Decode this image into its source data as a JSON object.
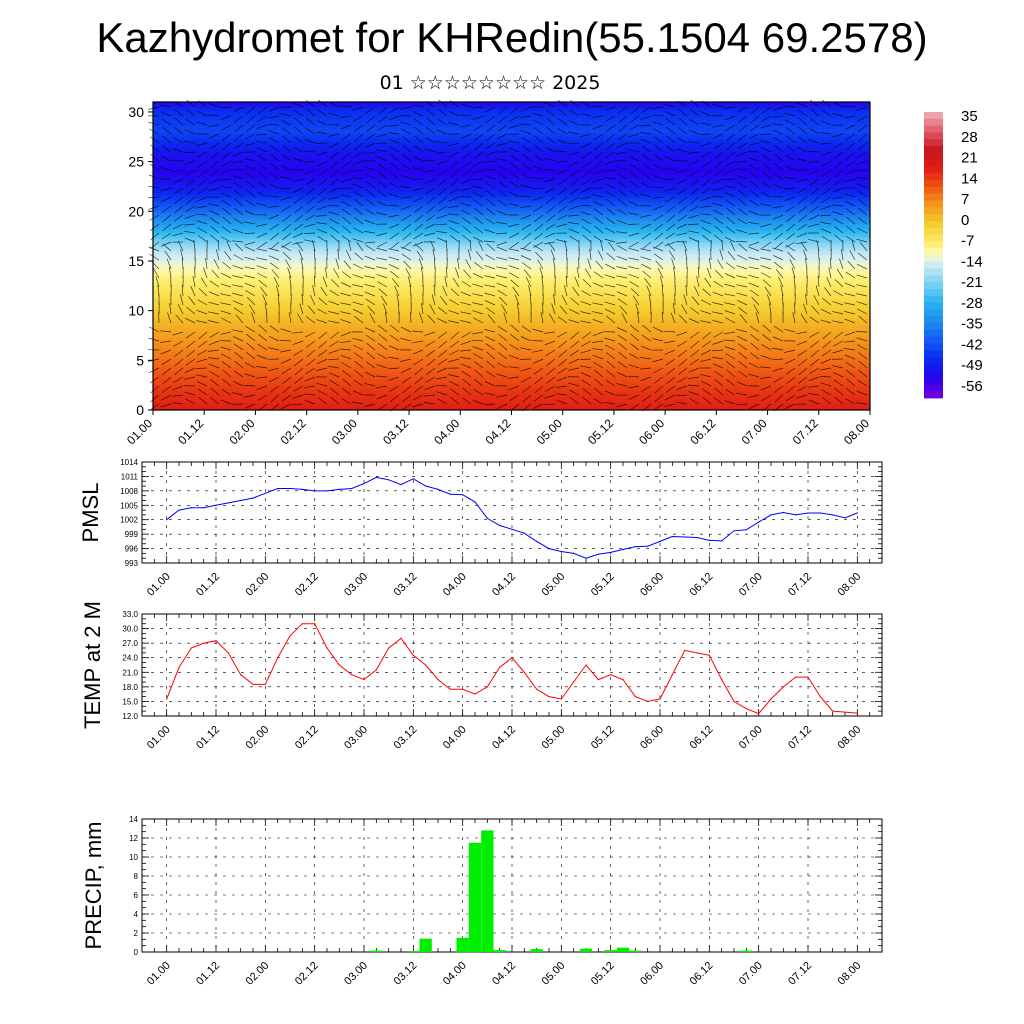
{
  "title": "Kazhydromet for KHRedin(55.1504 69.2578)",
  "subtitle": "01 ☆☆☆☆☆☆☆☆ 2025",
  "colors": {
    "pmsl_line": "#0000ff",
    "temp_line": "#ff0000",
    "precip_bar": "#00ee00"
  },
  "x_tick_labels": [
    "01.00",
    "01.12",
    "02.00",
    "02.12",
    "03.00",
    "03.12",
    "04.00",
    "04.12",
    "05.00",
    "05.12",
    "06.00",
    "06.12",
    "07.00",
    "07.12",
    "08.00"
  ],
  "chart_data": [
    {
      "type": "heatmap",
      "name": "cross-section",
      "x_ticks": [
        "01.00",
        "01.12",
        "02.00",
        "02.12",
        "03.00",
        "03.12",
        "04.00",
        "04.12",
        "05.00",
        "05.12",
        "06.00",
        "06.12",
        "07.00",
        "07.12",
        "08.00"
      ],
      "y_ticks": [
        0,
        5,
        10,
        15,
        20,
        25,
        30
      ],
      "ylim": [
        0,
        31
      ],
      "temperature_profile": {
        "levels": [
          0,
          2,
          4,
          6,
          8,
          10,
          12,
          14,
          16,
          18,
          20,
          22,
          24,
          26,
          28,
          30,
          31
        ],
        "values": [
          21,
          18,
          14,
          10,
          6,
          1,
          -4,
          -9,
          -16,
          -28,
          -40,
          -50,
          -56,
          -52,
          -45,
          -48,
          -55
        ]
      },
      "colorbar": {
        "ticks": [
          35,
          28,
          21,
          14,
          7,
          0,
          -7,
          -14,
          -21,
          -28,
          -35,
          -42,
          -49,
          -56
        ],
        "range": [
          -63,
          42
        ]
      },
      "overlay": "wind barbs"
    },
    {
      "type": "line",
      "name": "pmsl",
      "ylabel": "PMSL",
      "ylim": [
        993,
        1014
      ],
      "y_ticks": [
        993,
        996,
        999,
        1002,
        1005,
        1008,
        1011,
        1014
      ],
      "x": [
        0,
        3,
        6,
        9,
        12,
        15,
        18,
        21,
        24,
        27,
        30,
        33,
        36,
        39,
        42,
        45,
        48,
        51,
        54,
        57,
        60,
        63,
        66,
        69,
        72,
        75,
        78,
        81,
        84,
        87,
        90,
        93,
        96,
        99,
        102,
        105,
        108,
        111,
        114,
        117,
        120,
        123,
        126,
        129,
        132,
        135,
        138,
        141,
        144,
        147,
        150,
        153,
        156,
        159,
        162,
        165,
        168
      ],
      "values": [
        1002,
        1004,
        1004.5,
        1004.5,
        1005,
        1005.5,
        1006,
        1006.5,
        1007.5,
        1008.5,
        1008.5,
        1008.3,
        1008,
        1008,
        1008.3,
        1008.5,
        1009.5,
        1010.8,
        1010.3,
        1009.3,
        1010.5,
        1009,
        1008.3,
        1007.3,
        1007.2,
        1005.7,
        1002.3,
        1000.8,
        1000,
        999.2,
        997.5,
        996,
        995.4,
        995,
        994,
        994.8,
        995.2,
        995.8,
        996.4,
        996.5,
        997.5,
        998.5,
        998.4,
        998.3,
        997.7,
        997.6,
        999.7,
        999.9,
        1001.5,
        1003,
        1003.5,
        1003,
        1003.4,
        1003.4,
        1003,
        1002.4,
        1003.4
      ]
    },
    {
      "type": "line",
      "name": "temp2m",
      "ylabel": "TEMP at 2 M",
      "ylim": [
        12,
        33
      ],
      "y_ticks": [
        12.0,
        15.0,
        18.0,
        21.0,
        24.0,
        27.0,
        30.0,
        33.0
      ],
      "x": [
        0,
        3,
        6,
        9,
        12,
        15,
        18,
        21,
        24,
        27,
        30,
        33,
        36,
        39,
        42,
        45,
        48,
        51,
        54,
        57,
        60,
        63,
        66,
        69,
        72,
        75,
        78,
        81,
        84,
        87,
        90,
        93,
        96,
        99,
        102,
        105,
        108,
        111,
        114,
        117,
        120,
        123,
        126,
        129,
        132,
        135,
        138,
        141,
        144,
        147,
        150,
        153,
        156,
        159,
        162,
        165,
        168
      ],
      "values": [
        15.5,
        22,
        26,
        27,
        27.5,
        25,
        20.5,
        18.5,
        18.5,
        24,
        28.5,
        31,
        31,
        26,
        22.5,
        20.5,
        19.5,
        21.5,
        26,
        28,
        24.5,
        22.5,
        19.5,
        17.5,
        17.5,
        16.5,
        18,
        22,
        24,
        21,
        17.5,
        16,
        15.5,
        19,
        22.5,
        19.5,
        20.5,
        19.5,
        16,
        15,
        15.5,
        20.5,
        25.5,
        25,
        24.5,
        19.5,
        15,
        13.5,
        12.5,
        15.5,
        18,
        20,
        20,
        16,
        13,
        12.8,
        12.6
      ]
    },
    {
      "type": "bar",
      "name": "precip",
      "ylabel": "PRECIP, mm",
      "ylim": [
        0,
        14
      ],
      "y_ticks": [
        0,
        2,
        4,
        6,
        8,
        10,
        12,
        14
      ],
      "x": [
        51,
        60,
        63,
        72,
        75,
        78,
        81,
        90,
        102,
        108,
        111,
        114,
        141
      ],
      "values": [
        0.15,
        0.1,
        1.4,
        1.5,
        11.5,
        12.8,
        0.2,
        0.3,
        0.35,
        0.2,
        0.45,
        0.15,
        0.15
      ]
    }
  ]
}
